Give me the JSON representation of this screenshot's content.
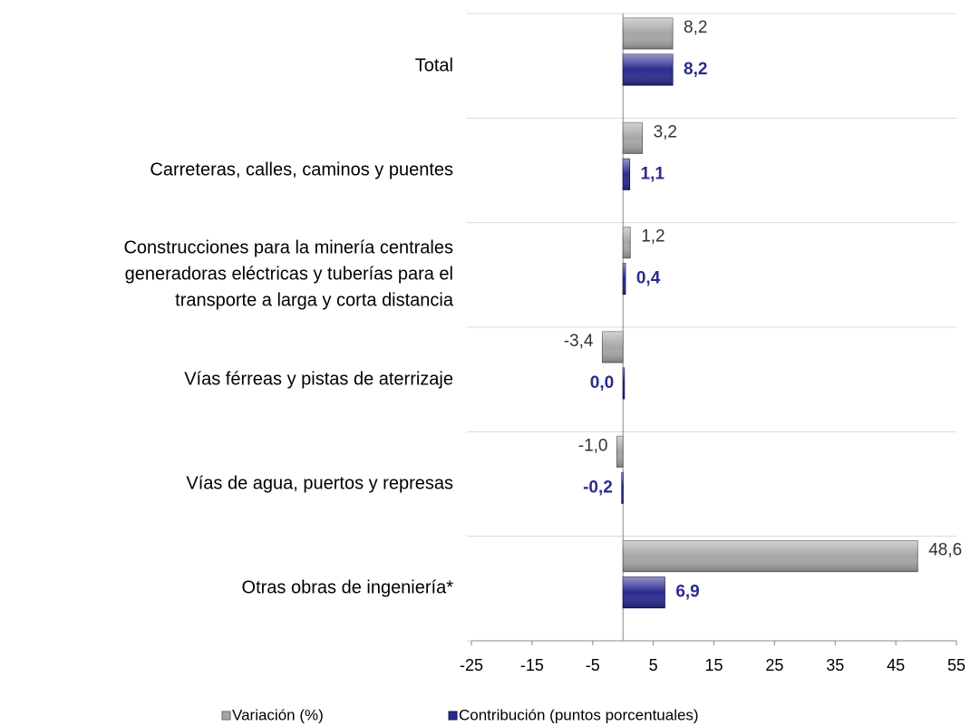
{
  "chart_data": {
    "type": "hbar",
    "categories": [
      "Total",
      "Carreteras, calles, caminos y puentes",
      "Construcciones para la minería centrales\ngeneradoras eléctricas y tuberías para el\ntransporte a larga y corta distancia",
      "Vías férreas y pistas de aterrizaje",
      "Vías de agua, puertos y represas",
      "Otras obras de ingeniería*"
    ],
    "series": [
      {
        "name": "Variación (%)",
        "color": "#a6a6a6",
        "values": [
          8.2,
          3.2,
          1.2,
          -3.4,
          -1.0,
          48.6
        ],
        "value_labels": [
          "8,2",
          "3,2",
          "1,2",
          "-3,4",
          "-1,0",
          "48,6"
        ]
      },
      {
        "name": "Contribución (puntos porcentuales)",
        "color": "#2b2b90",
        "values": [
          8.2,
          1.1,
          0.4,
          0.0,
          -0.2,
          6.9
        ],
        "value_labels": [
          "8,2",
          "1,1",
          "0,4",
          "0,0",
          "-0,2",
          "6,9"
        ]
      }
    ],
    "xlim": [
      -25,
      55
    ],
    "xticks": [
      -25,
      -15,
      -5,
      5,
      15,
      25,
      35,
      45,
      55
    ],
    "grid": true
  }
}
